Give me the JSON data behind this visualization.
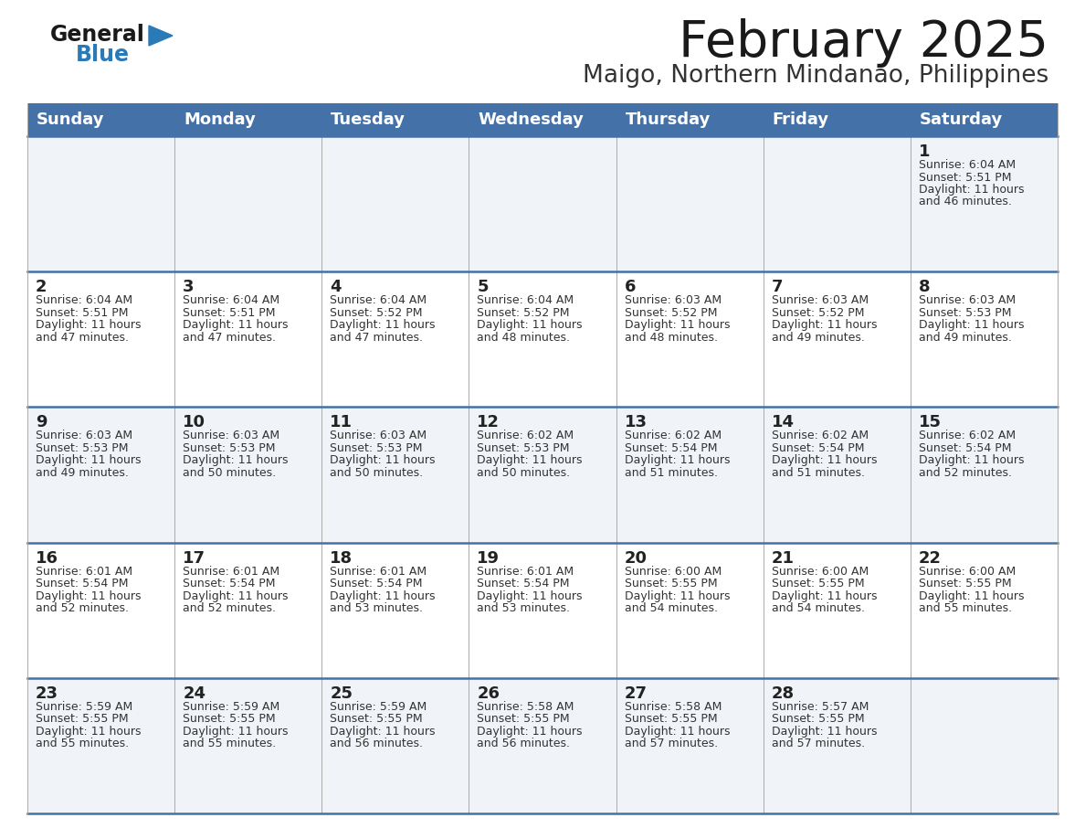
{
  "title": "February 2025",
  "subtitle": "Maigo, Northern Mindanao, Philippines",
  "days_of_week": [
    "Sunday",
    "Monday",
    "Tuesday",
    "Wednesday",
    "Thursday",
    "Friday",
    "Saturday"
  ],
  "header_bg": "#4472A8",
  "header_text": "#FFFFFF",
  "row_bg_light": "#F0F4F8",
  "row_bg_white": "#FFFFFF",
  "border_color": "#4472A8",
  "title_color": "#1a1a1a",
  "subtitle_color": "#333333",
  "day_number_color": "#222222",
  "cell_text_color": "#333333",
  "logo_general_color": "#1a1a1a",
  "logo_blue_color": "#2B7AB8",
  "cell_line_color": "#BBBBBB",
  "calendar": [
    [
      null,
      null,
      null,
      null,
      null,
      null,
      {
        "day": 1,
        "sunrise": "6:04 AM",
        "sunset": "5:51 PM",
        "daylight": "11 hours and 46 minutes"
      }
    ],
    [
      {
        "day": 2,
        "sunrise": "6:04 AM",
        "sunset": "5:51 PM",
        "daylight": "11 hours and 47 minutes"
      },
      {
        "day": 3,
        "sunrise": "6:04 AM",
        "sunset": "5:51 PM",
        "daylight": "11 hours and 47 minutes"
      },
      {
        "day": 4,
        "sunrise": "6:04 AM",
        "sunset": "5:52 PM",
        "daylight": "11 hours and 47 minutes"
      },
      {
        "day": 5,
        "sunrise": "6:04 AM",
        "sunset": "5:52 PM",
        "daylight": "11 hours and 48 minutes"
      },
      {
        "day": 6,
        "sunrise": "6:03 AM",
        "sunset": "5:52 PM",
        "daylight": "11 hours and 48 minutes"
      },
      {
        "day": 7,
        "sunrise": "6:03 AM",
        "sunset": "5:52 PM",
        "daylight": "11 hours and 49 minutes"
      },
      {
        "day": 8,
        "sunrise": "6:03 AM",
        "sunset": "5:53 PM",
        "daylight": "11 hours and 49 minutes"
      }
    ],
    [
      {
        "day": 9,
        "sunrise": "6:03 AM",
        "sunset": "5:53 PM",
        "daylight": "11 hours and 49 minutes"
      },
      {
        "day": 10,
        "sunrise": "6:03 AM",
        "sunset": "5:53 PM",
        "daylight": "11 hours and 50 minutes"
      },
      {
        "day": 11,
        "sunrise": "6:03 AM",
        "sunset": "5:53 PM",
        "daylight": "11 hours and 50 minutes"
      },
      {
        "day": 12,
        "sunrise": "6:02 AM",
        "sunset": "5:53 PM",
        "daylight": "11 hours and 50 minutes"
      },
      {
        "day": 13,
        "sunrise": "6:02 AM",
        "sunset": "5:54 PM",
        "daylight": "11 hours and 51 minutes"
      },
      {
        "day": 14,
        "sunrise": "6:02 AM",
        "sunset": "5:54 PM",
        "daylight": "11 hours and 51 minutes"
      },
      {
        "day": 15,
        "sunrise": "6:02 AM",
        "sunset": "5:54 PM",
        "daylight": "11 hours and 52 minutes"
      }
    ],
    [
      {
        "day": 16,
        "sunrise": "6:01 AM",
        "sunset": "5:54 PM",
        "daylight": "11 hours and 52 minutes"
      },
      {
        "day": 17,
        "sunrise": "6:01 AM",
        "sunset": "5:54 PM",
        "daylight": "11 hours and 52 minutes"
      },
      {
        "day": 18,
        "sunrise": "6:01 AM",
        "sunset": "5:54 PM",
        "daylight": "11 hours and 53 minutes"
      },
      {
        "day": 19,
        "sunrise": "6:01 AM",
        "sunset": "5:54 PM",
        "daylight": "11 hours and 53 minutes"
      },
      {
        "day": 20,
        "sunrise": "6:00 AM",
        "sunset": "5:55 PM",
        "daylight": "11 hours and 54 minutes"
      },
      {
        "day": 21,
        "sunrise": "6:00 AM",
        "sunset": "5:55 PM",
        "daylight": "11 hours and 54 minutes"
      },
      {
        "day": 22,
        "sunrise": "6:00 AM",
        "sunset": "5:55 PM",
        "daylight": "11 hours and 55 minutes"
      }
    ],
    [
      {
        "day": 23,
        "sunrise": "5:59 AM",
        "sunset": "5:55 PM",
        "daylight": "11 hours and 55 minutes"
      },
      {
        "day": 24,
        "sunrise": "5:59 AM",
        "sunset": "5:55 PM",
        "daylight": "11 hours and 55 minutes"
      },
      {
        "day": 25,
        "sunrise": "5:59 AM",
        "sunset": "5:55 PM",
        "daylight": "11 hours and 56 minutes"
      },
      {
        "day": 26,
        "sunrise": "5:58 AM",
        "sunset": "5:55 PM",
        "daylight": "11 hours and 56 minutes"
      },
      {
        "day": 27,
        "sunrise": "5:58 AM",
        "sunset": "5:55 PM",
        "daylight": "11 hours and 57 minutes"
      },
      {
        "day": 28,
        "sunrise": "5:57 AM",
        "sunset": "5:55 PM",
        "daylight": "11 hours and 57 minutes"
      },
      null
    ]
  ],
  "num_rows": 5,
  "num_cols": 7
}
